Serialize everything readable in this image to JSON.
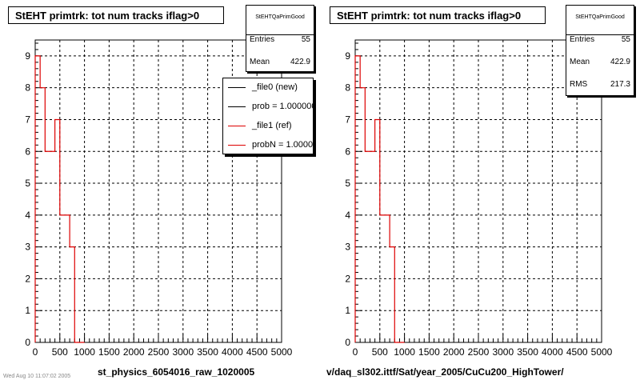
{
  "panels": [
    {
      "title": "StEHT primtrk: tot num tracks iflag>0",
      "stats": {
        "name": "StEHTQaPrimGood",
        "rows": [
          {
            "key": "Entries",
            "value": "55"
          },
          {
            "key": "Mean",
            "value": "422.9"
          }
        ]
      },
      "legend": [
        {
          "label": "_file0 (new)",
          "color": "#000000"
        },
        {
          "label": "prob = 1.000000",
          "color": "#000000"
        },
        {
          "label": "_file1 (ref)",
          "color": "#dd0000"
        },
        {
          "label": "probN = 1.000000",
          "color": "#dd0000"
        }
      ],
      "xtitle": "st_physics_6054016_raw_1020005"
    },
    {
      "title": "StEHT primtrk: tot num tracks iflag>0",
      "stats": {
        "name": "StEHTQaPrimGood",
        "rows": [
          {
            "key": "Entries",
            "value": "55"
          },
          {
            "key": "Mean",
            "value": "422.9"
          },
          {
            "key": "RMS",
            "value": "217.3"
          }
        ]
      },
      "legend": [],
      "xtitle": "v/daq_sl302.ittf/Sat/year_2005/CuCu200_HighTower/"
    }
  ],
  "footnote": "Wed Aug 10 11:07:02 2005",
  "chart_data": {
    "type": "histogram",
    "xlim": [
      0,
      5000
    ],
    "ylim": [
      0,
      9.5
    ],
    "xticks": [
      0,
      500,
      1000,
      1500,
      2000,
      2500,
      3000,
      3500,
      4000,
      4500,
      5000
    ],
    "yticks": [
      0,
      1,
      2,
      3,
      4,
      5,
      6,
      7,
      8,
      9
    ],
    "grid": true,
    "bin_edges": [
      0,
      100,
      200,
      400,
      500,
      700,
      800,
      900,
      1000
    ],
    "series": [
      {
        "name": "_file1 (ref)",
        "color": "#dd0000",
        "values": [
          9,
          8,
          6,
          7,
          4,
          3,
          0,
          0
        ]
      }
    ]
  }
}
